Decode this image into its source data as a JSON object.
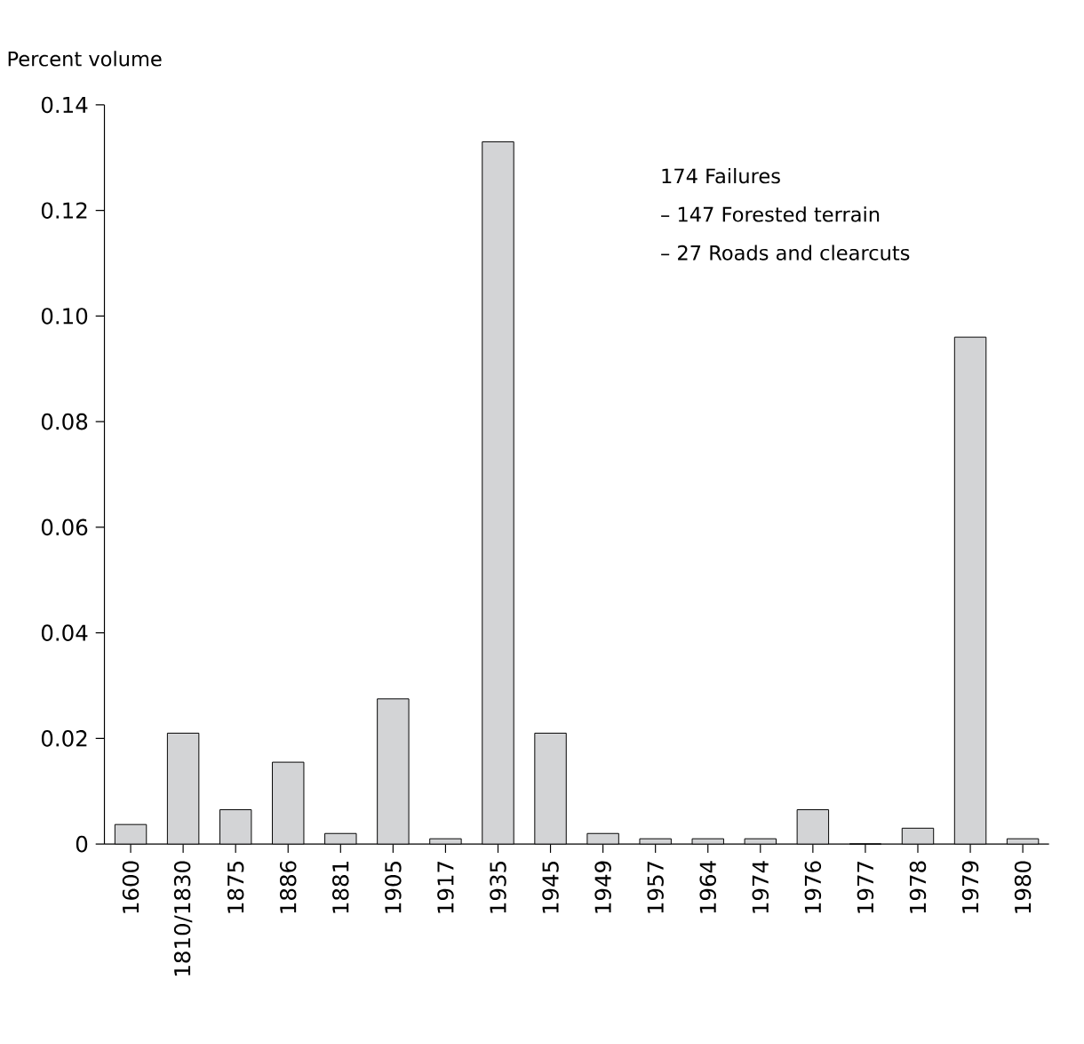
{
  "chart_data": {
    "type": "bar",
    "ylabel": "Percent volume",
    "categories": [
      "1600",
      "1810/1830",
      "1875",
      "1886",
      "1881",
      "1905",
      "1917",
      "1935",
      "1945",
      "1949",
      "1957",
      "1964",
      "1974",
      "1976",
      "1977",
      "1978",
      "1979",
      "1980"
    ],
    "values": [
      0.0037,
      0.021,
      0.0065,
      0.0155,
      0.002,
      0.0275,
      0.001,
      0.133,
      0.021,
      0.002,
      0.001,
      0.001,
      0.001,
      0.0065,
      0,
      0.003,
      0.096,
      0.001
    ],
    "color": "#d3d4d6",
    "ylim": [
      0,
      0.14
    ],
    "yticks": [
      0,
      0.02,
      0.04,
      0.06,
      0.08,
      {
        "value": 0.1,
        "label": "0.10"
      },
      0.12,
      0.14
    ],
    "annotations": [
      "174 Failures",
      "– 147 Forested terrain",
      "– 27 Roads and clearcuts"
    ],
    "grid": false
  }
}
